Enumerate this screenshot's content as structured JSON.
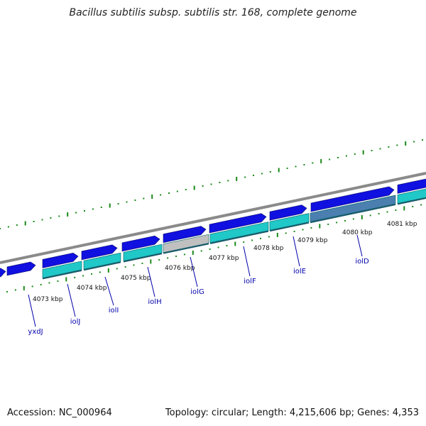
{
  "title": "Bacillus subtilis subsp. subtilis str. 168, complete genome",
  "footer": {
    "accession": "Accession: NC_000964",
    "topology": "Topology: circular; Length: 4,215,606 bp; Genes: 4,353"
  },
  "colors": {
    "backbone": "#8a8a8a",
    "forward_gene": "#1010e0",
    "reverse_gene": "#20c8c8",
    "highlight_gene": "#4a7fb0",
    "grey_gene": "#c0c0c0",
    "ticks": "#1a8a1a",
    "gene_label": "#0000aa"
  },
  "kbp_labels": [
    "4073 kbp",
    "4074 kbp",
    "4075 kbp",
    "4076 kbp",
    "4077 kbp",
    "4078 kbp",
    "4079 kbp",
    "4080 kbp",
    "4081 kbp"
  ],
  "gene_labels": [
    "yxdJ",
    "iolJ",
    "iolI",
    "iolH",
    "iolG",
    "iolF",
    "iolE",
    "iolD"
  ]
}
